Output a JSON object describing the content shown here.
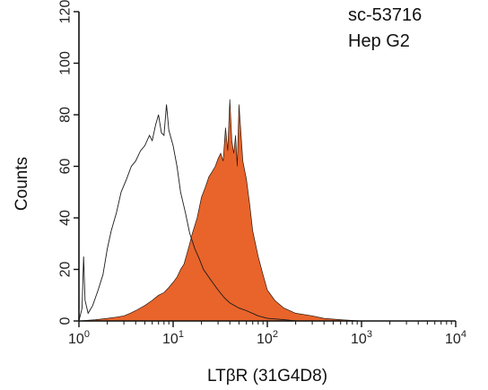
{
  "chart_data": {
    "type": "area",
    "title": "",
    "annotations": [
      "sc-53716",
      "Hep G2"
    ],
    "xlabel": "LTβR (31G4D8)",
    "ylabel": "Counts",
    "x_scale": "log",
    "xlim": [
      1,
      10000
    ],
    "ylim": [
      0,
      120
    ],
    "x_ticks": [
      {
        "value": 1,
        "base": "10",
        "exp": "0"
      },
      {
        "value": 10,
        "base": "10",
        "exp": "1"
      },
      {
        "value": 100,
        "base": "10",
        "exp": "2"
      },
      {
        "value": 1000,
        "base": "10",
        "exp": "3"
      },
      {
        "value": 10000,
        "base": "10",
        "exp": "4"
      }
    ],
    "y_ticks": [
      {
        "value": 0,
        "label": "0"
      },
      {
        "value": 20,
        "label": "20"
      },
      {
        "value": 40,
        "label": "40"
      },
      {
        "value": 60,
        "label": "60"
      },
      {
        "value": 80,
        "label": "80"
      },
      {
        "value": 100,
        "label": "100"
      },
      {
        "value": 120,
        "label": "120"
      }
    ],
    "grid": false,
    "series": [
      {
        "style": "outline",
        "color": "#1a1a1a",
        "points": [
          [
            1.0,
            0
          ],
          [
            1.08,
            5
          ],
          [
            1.12,
            25
          ],
          [
            1.16,
            8
          ],
          [
            1.25,
            3
          ],
          [
            1.4,
            6
          ],
          [
            1.6,
            12
          ],
          [
            1.8,
            18
          ],
          [
            2.0,
            28
          ],
          [
            2.2,
            35
          ],
          [
            2.5,
            42
          ],
          [
            2.8,
            50
          ],
          [
            3.2,
            55
          ],
          [
            3.6,
            60
          ],
          [
            4.0,
            62
          ],
          [
            4.5,
            66
          ],
          [
            5.0,
            68
          ],
          [
            5.6,
            72
          ],
          [
            6.0,
            70
          ],
          [
            6.5,
            76
          ],
          [
            7.0,
            80
          ],
          [
            7.5,
            73
          ],
          [
            8.0,
            72
          ],
          [
            8.5,
            84
          ],
          [
            9.0,
            74
          ],
          [
            10.0,
            68
          ],
          [
            11.0,
            60
          ],
          [
            12.0,
            50
          ],
          [
            13.5,
            42
          ],
          [
            15.0,
            34
          ],
          [
            17.0,
            28
          ],
          [
            19.0,
            24
          ],
          [
            21.0,
            20
          ],
          [
            25.0,
            16
          ],
          [
            30.0,
            12
          ],
          [
            35.0,
            9
          ],
          [
            40.0,
            7
          ],
          [
            50.0,
            5
          ],
          [
            60.0,
            4
          ],
          [
            80.0,
            2
          ],
          [
            100.0,
            1
          ],
          [
            150.0,
            0.5
          ],
          [
            200.0,
            0
          ]
        ]
      },
      {
        "style": "filled",
        "color": "#e8642b",
        "points": [
          [
            1.0,
            0
          ],
          [
            1.5,
            0.5
          ],
          [
            2.0,
            1
          ],
          [
            2.5,
            1.5
          ],
          [
            3.0,
            2
          ],
          [
            3.5,
            3
          ],
          [
            4.0,
            4
          ],
          [
            5.0,
            6
          ],
          [
            6.0,
            8
          ],
          [
            7.0,
            10
          ],
          [
            8.0,
            11
          ],
          [
            9.0,
            13
          ],
          [
            10.0,
            15
          ],
          [
            11.0,
            17
          ],
          [
            12.0,
            20
          ],
          [
            13.0,
            22
          ],
          [
            14.0,
            26
          ],
          [
            15.0,
            30
          ],
          [
            16.0,
            34
          ],
          [
            18.0,
            40
          ],
          [
            20.0,
            48
          ],
          [
            22.0,
            52
          ],
          [
            24.0,
            56
          ],
          [
            26.0,
            58
          ],
          [
            28.0,
            60
          ],
          [
            30.0,
            63
          ],
          [
            32.0,
            65
          ],
          [
            34.0,
            62
          ],
          [
            36.0,
            75
          ],
          [
            38.0,
            66
          ],
          [
            40.0,
            86
          ],
          [
            42.0,
            70
          ],
          [
            44.0,
            65
          ],
          [
            46.0,
            72
          ],
          [
            48.0,
            60
          ],
          [
            50.0,
            84
          ],
          [
            55.0,
            62
          ],
          [
            60.0,
            55
          ],
          [
            65.0,
            45
          ],
          [
            70.0,
            35
          ],
          [
            80.0,
            25
          ],
          [
            90.0,
            18
          ],
          [
            100.0,
            12
          ],
          [
            120.0,
            8
          ],
          [
            150.0,
            5
          ],
          [
            200.0,
            3
          ],
          [
            300.0,
            2
          ],
          [
            400.0,
            1
          ],
          [
            600.0,
            0.5
          ],
          [
            1000.0,
            0
          ]
        ]
      }
    ]
  }
}
